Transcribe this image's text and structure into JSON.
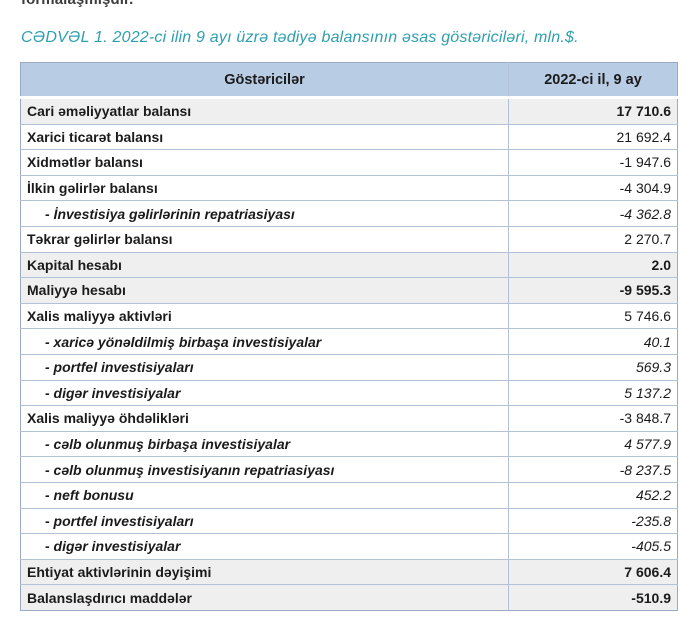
{
  "page": {
    "top_text_fragment": "formalaşmışdır.",
    "title": "CƏDVƏL 1. 2022-ci ilin 9 ayı üzrə tədiyə balansının əsas göstəriciləri, mln.$."
  },
  "table": {
    "headers": {
      "indicator": "Göstəricilər",
      "period": "2022-ci il, 9 ay"
    },
    "rows": [
      {
        "label": "Cari əməliyyatlar balansı",
        "value": "17 710.6",
        "style": "major"
      },
      {
        "label": "Xarici ticarət balansı",
        "value": "21 692.4",
        "style": "main"
      },
      {
        "label": "Xidmətlər balansı",
        "value": "-1 947.6",
        "style": "main"
      },
      {
        "label": "İlkin gəlirlər balansı",
        "value": "-4 304.9",
        "style": "main"
      },
      {
        "label": "- İnvestisiya gəlirlərinin repatriasiyası",
        "value": "-4 362.8",
        "style": "sub"
      },
      {
        "label": "Təkrar gəlirlər balansı",
        "value": "2 270.7",
        "style": "main"
      },
      {
        "label": "Kapital hesabı",
        "value": "2.0",
        "style": "major"
      },
      {
        "label": "Maliyyə hesabı",
        "value": "-9 595.3",
        "style": "major"
      },
      {
        "label": "Xalis maliyyə aktivləri",
        "value": "5 746.6",
        "style": "main"
      },
      {
        "label": "- xaricə yönəldilmiş birbaşa investisiyalar",
        "value": "40.1",
        "style": "sub"
      },
      {
        "label": "- portfel investisiyaları",
        "value": "569.3",
        "style": "sub"
      },
      {
        "label": "- digər investisiyalar",
        "value": "5 137.2",
        "style": "sub"
      },
      {
        "label": "Xalis maliyyə öhdəlikləri",
        "value": "-3 848.7",
        "style": "main"
      },
      {
        "label": "- cəlb olunmuş birbaşa investisiyalar",
        "value": "4 577.9",
        "style": "sub"
      },
      {
        "label": "- cəlb olunmuş investisiyanın repatriasiyası",
        "value": "-8 237.5",
        "style": "sub"
      },
      {
        "label": "- neft bonusu",
        "value": "452.2",
        "style": "sub"
      },
      {
        "label": "- portfel investisiyaları",
        "value": "-235.8",
        "style": "sub"
      },
      {
        "label": "- digər investisiyalar",
        "value": "-405.5",
        "style": "sub"
      },
      {
        "label": "Ehtiyat aktivlərinin dəyişimi",
        "value": "7 606.4",
        "style": "major"
      },
      {
        "label": "Balanslaşdırıcı maddələr",
        "value": "-510.9",
        "style": "major"
      }
    ]
  },
  "colors": {
    "title": "#2e9fae",
    "header_bg": "#b8cce4",
    "border": "#b3c1d6",
    "outer_border": "#9aa9c4",
    "major_row_bg": "#efefef"
  }
}
